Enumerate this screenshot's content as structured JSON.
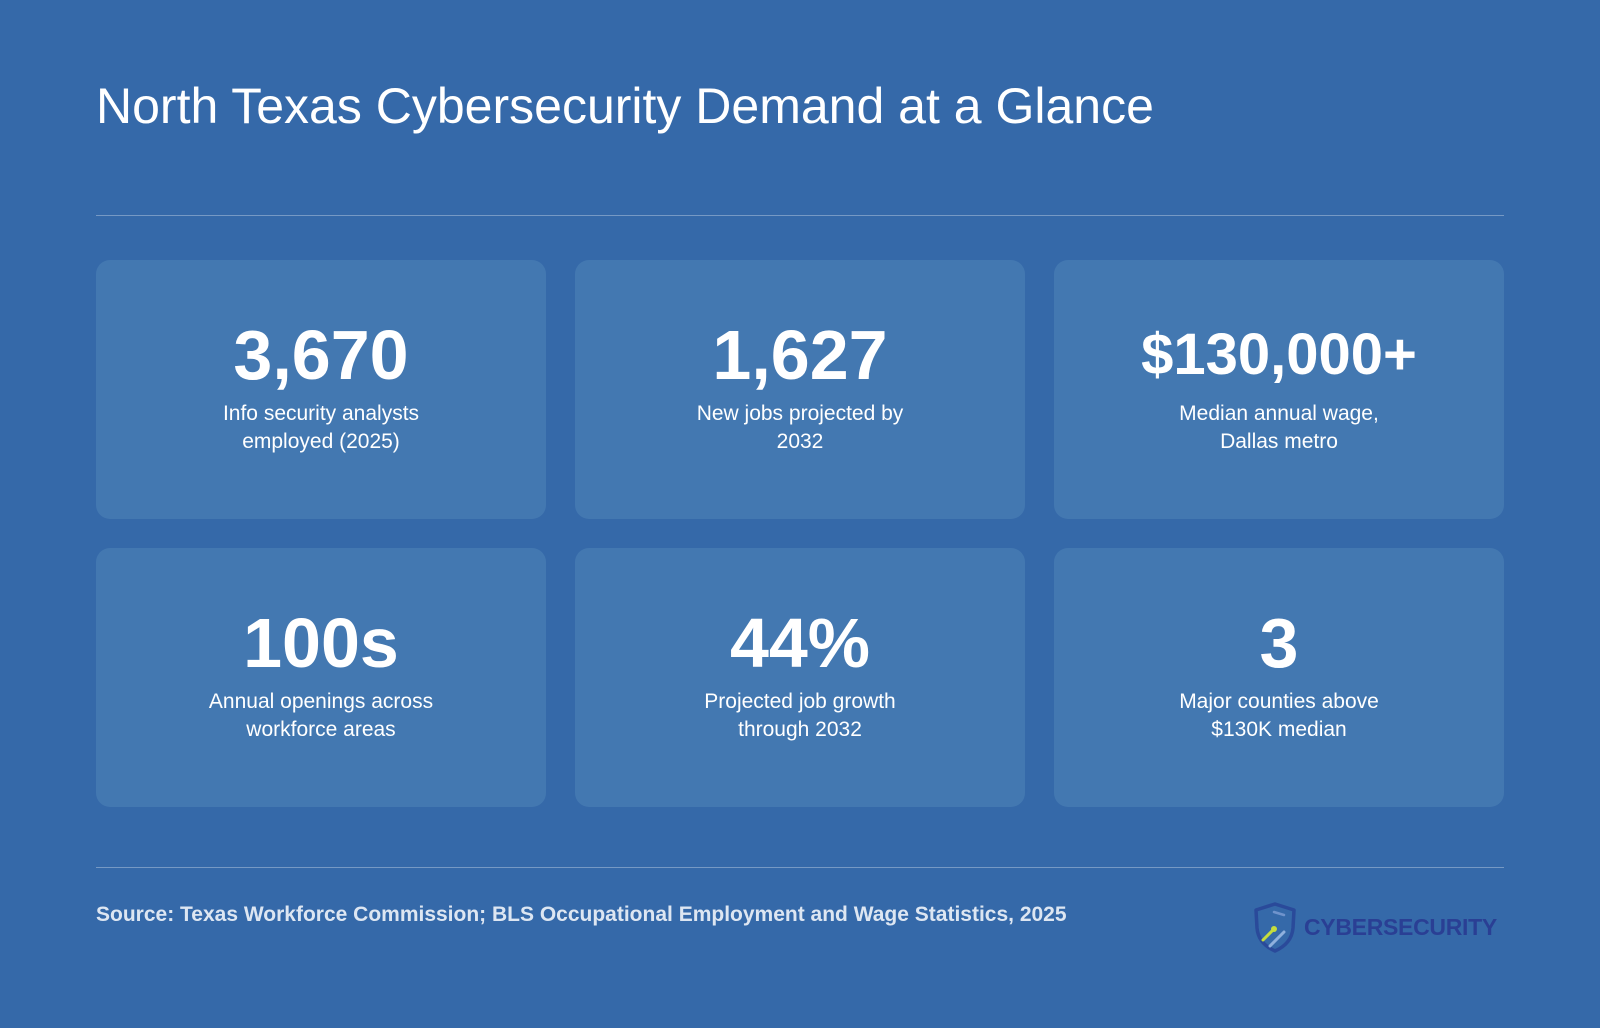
{
  "title": "North Texas Cybersecurity Demand at a Glance",
  "stats": [
    {
      "value": "3,670",
      "label": "Info security analysts employed (2025)"
    },
    {
      "value": "1,627",
      "label": "New jobs projected by 2032"
    },
    {
      "value": "$130,000+",
      "label": "Median annual wage, Dallas metro"
    },
    {
      "value": "100s",
      "label": "Annual openings across workforce areas"
    },
    {
      "value": "44%",
      "label": "Projected job growth through 2032"
    },
    {
      "value": "3",
      "label": "Major counties above $130K median"
    }
  ],
  "source": "Source: Texas Workforce Commission; BLS Occupational Employment and Wage Statistics, 2025",
  "logo": {
    "text": "CYBERSECURITY",
    "icon": "shield-icon"
  },
  "colors": {
    "background": "#3569a9",
    "card": "#4378b1",
    "logo_text": "#2a3f94",
    "logo_accent": "#c5dd3c"
  }
}
